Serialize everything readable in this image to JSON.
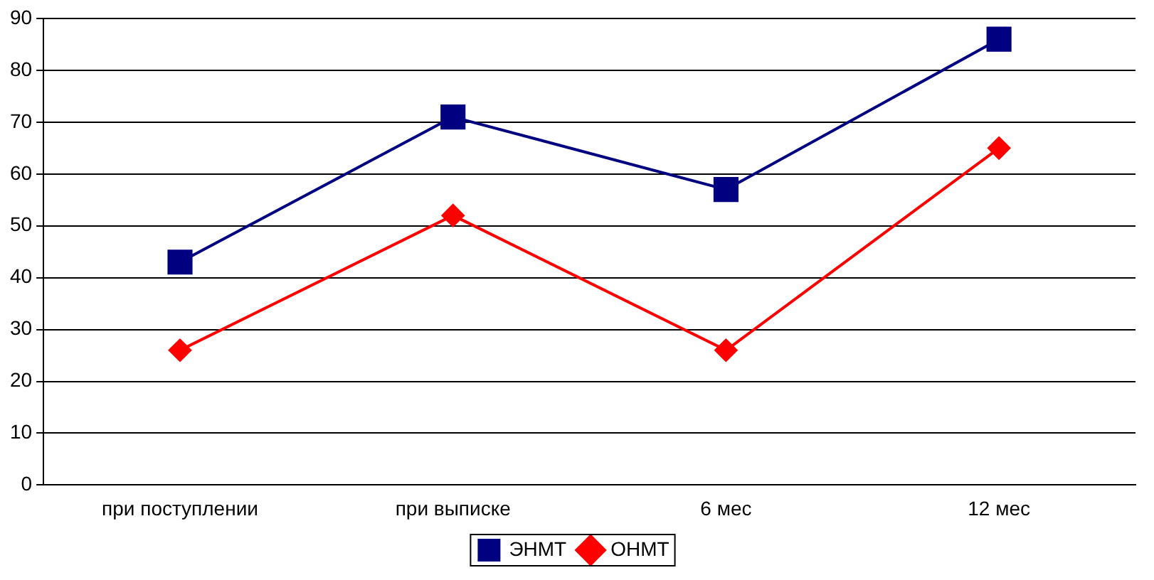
{
  "chart_data": {
    "type": "line",
    "categories": [
      "при поступлении",
      "при выписке",
      "6 мес",
      "12 мес"
    ],
    "series": [
      {
        "name": "ЭНМТ",
        "color": "#000080",
        "marker": "square",
        "values": [
          43,
          71,
          57,
          86
        ]
      },
      {
        "name": "ОНМТ",
        "color": "#ff0000",
        "marker": "diamond",
        "values": [
          26,
          52,
          26,
          65
        ]
      }
    ],
    "ylim": [
      0,
      90
    ],
    "yticks": [
      0,
      10,
      20,
      30,
      40,
      50,
      60,
      70,
      80,
      90
    ],
    "grid": "y",
    "legend": "bottom"
  }
}
